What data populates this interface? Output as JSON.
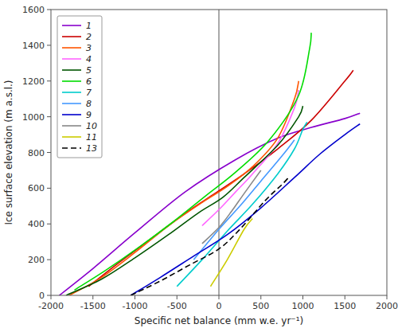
{
  "chart_data": {
    "type": "line",
    "xlabel": "Specific net balance (mm w.e. yr⁻¹)",
    "ylabel": "Ice surface elevation (m a.s.l.)",
    "xlim": [
      -2000,
      2000
    ],
    "ylim": [
      0,
      1600
    ],
    "xticks": [
      -2000,
      -1500,
      -1000,
      -500,
      0,
      500,
      1000,
      1500,
      2000
    ],
    "yticks": [
      0,
      200,
      400,
      600,
      800,
      1000,
      1200,
      1400,
      1600
    ],
    "legend": "upper left",
    "series": [
      {
        "name": "1",
        "color": "#8800CC",
        "line_style": "solid",
        "x": [
          -1900,
          -1500,
          -1000,
          -400,
          200,
          700,
          1100,
          1500,
          1680
        ],
        "values": [
          0,
          150,
          350,
          580,
          760,
          880,
          940,
          990,
          1020
        ]
      },
      {
        "name": "2",
        "color": "#CC0000",
        "line_style": "solid",
        "x": [
          -1550,
          -1200,
          -800,
          -400,
          -50,
          300,
          700,
          1100,
          1500,
          1600
        ],
        "values": [
          50,
          180,
          320,
          460,
          570,
          680,
          820,
          980,
          1200,
          1260
        ]
      },
      {
        "name": "3",
        "color": "#FF5500",
        "line_style": "solid",
        "x": [
          -1780,
          -1400,
          -1000,
          -600,
          -200,
          100,
          400,
          700,
          900,
          950
        ],
        "values": [
          0,
          100,
          240,
          390,
          520,
          610,
          720,
          880,
          1100,
          1200
        ]
      },
      {
        "name": "4",
        "color": "#FF66FF",
        "line_style": "solid",
        "x": [
          -200,
          0,
          200,
          400,
          700,
          900,
          950
        ],
        "values": [
          390,
          480,
          580,
          680,
          850,
          1050,
          1150
        ]
      },
      {
        "name": "5",
        "color": "#005500",
        "line_style": "solid",
        "x": [
          -1820,
          -1400,
          -1000,
          -600,
          -250,
          50,
          300,
          700,
          950,
          1000
        ],
        "values": [
          0,
          90,
          210,
          340,
          460,
          550,
          660,
          840,
          1000,
          1060
        ]
      },
      {
        "name": "6",
        "color": "#00DD00",
        "line_style": "solid",
        "x": [
          -1720,
          -1350,
          -950,
          -550,
          -150,
          200,
          600,
          950,
          1080,
          1100
        ],
        "values": [
          30,
          140,
          270,
          410,
          560,
          690,
          870,
          1120,
          1380,
          1470
        ]
      },
      {
        "name": "7",
        "color": "#00CCCC",
        "line_style": "solid",
        "x": [
          -500,
          -200,
          100,
          400,
          700,
          900,
          1000,
          1050
        ],
        "values": [
          50,
          200,
          360,
          510,
          680,
          820,
          930,
          970
        ]
      },
      {
        "name": "8",
        "color": "#4499FF",
        "line_style": "solid",
        "x": [
          -300,
          0,
          250,
          500,
          750,
          900
        ],
        "values": [
          200,
          370,
          500,
          640,
          780,
          870
        ]
      },
      {
        "name": "9",
        "color": "#0000CC",
        "line_style": "solid",
        "x": [
          -1050,
          -700,
          -300,
          100,
          500,
          900,
          1200,
          1500,
          1680
        ],
        "values": [
          0,
          100,
          220,
          340,
          490,
          660,
          790,
          900,
          960
        ]
      },
      {
        "name": "10",
        "color": "#888888",
        "line_style": "solid",
        "x": [
          -200,
          0,
          150,
          300,
          500
        ],
        "values": [
          290,
          380,
          470,
          570,
          700
        ]
      },
      {
        "name": "11",
        "color": "#CCCC00",
        "line_style": "solid",
        "x": [
          -100,
          100,
          300,
          400
        ],
        "values": [
          50,
          200,
          370,
          430
        ]
      },
      {
        "name": "13",
        "color": "#000000",
        "line_style": "dashed",
        "x": [
          -1050,
          -700,
          -350,
          0,
          250,
          550,
          750,
          830
        ],
        "values": [
          0,
          80,
          170,
          260,
          370,
          530,
          620,
          660
        ]
      }
    ]
  }
}
